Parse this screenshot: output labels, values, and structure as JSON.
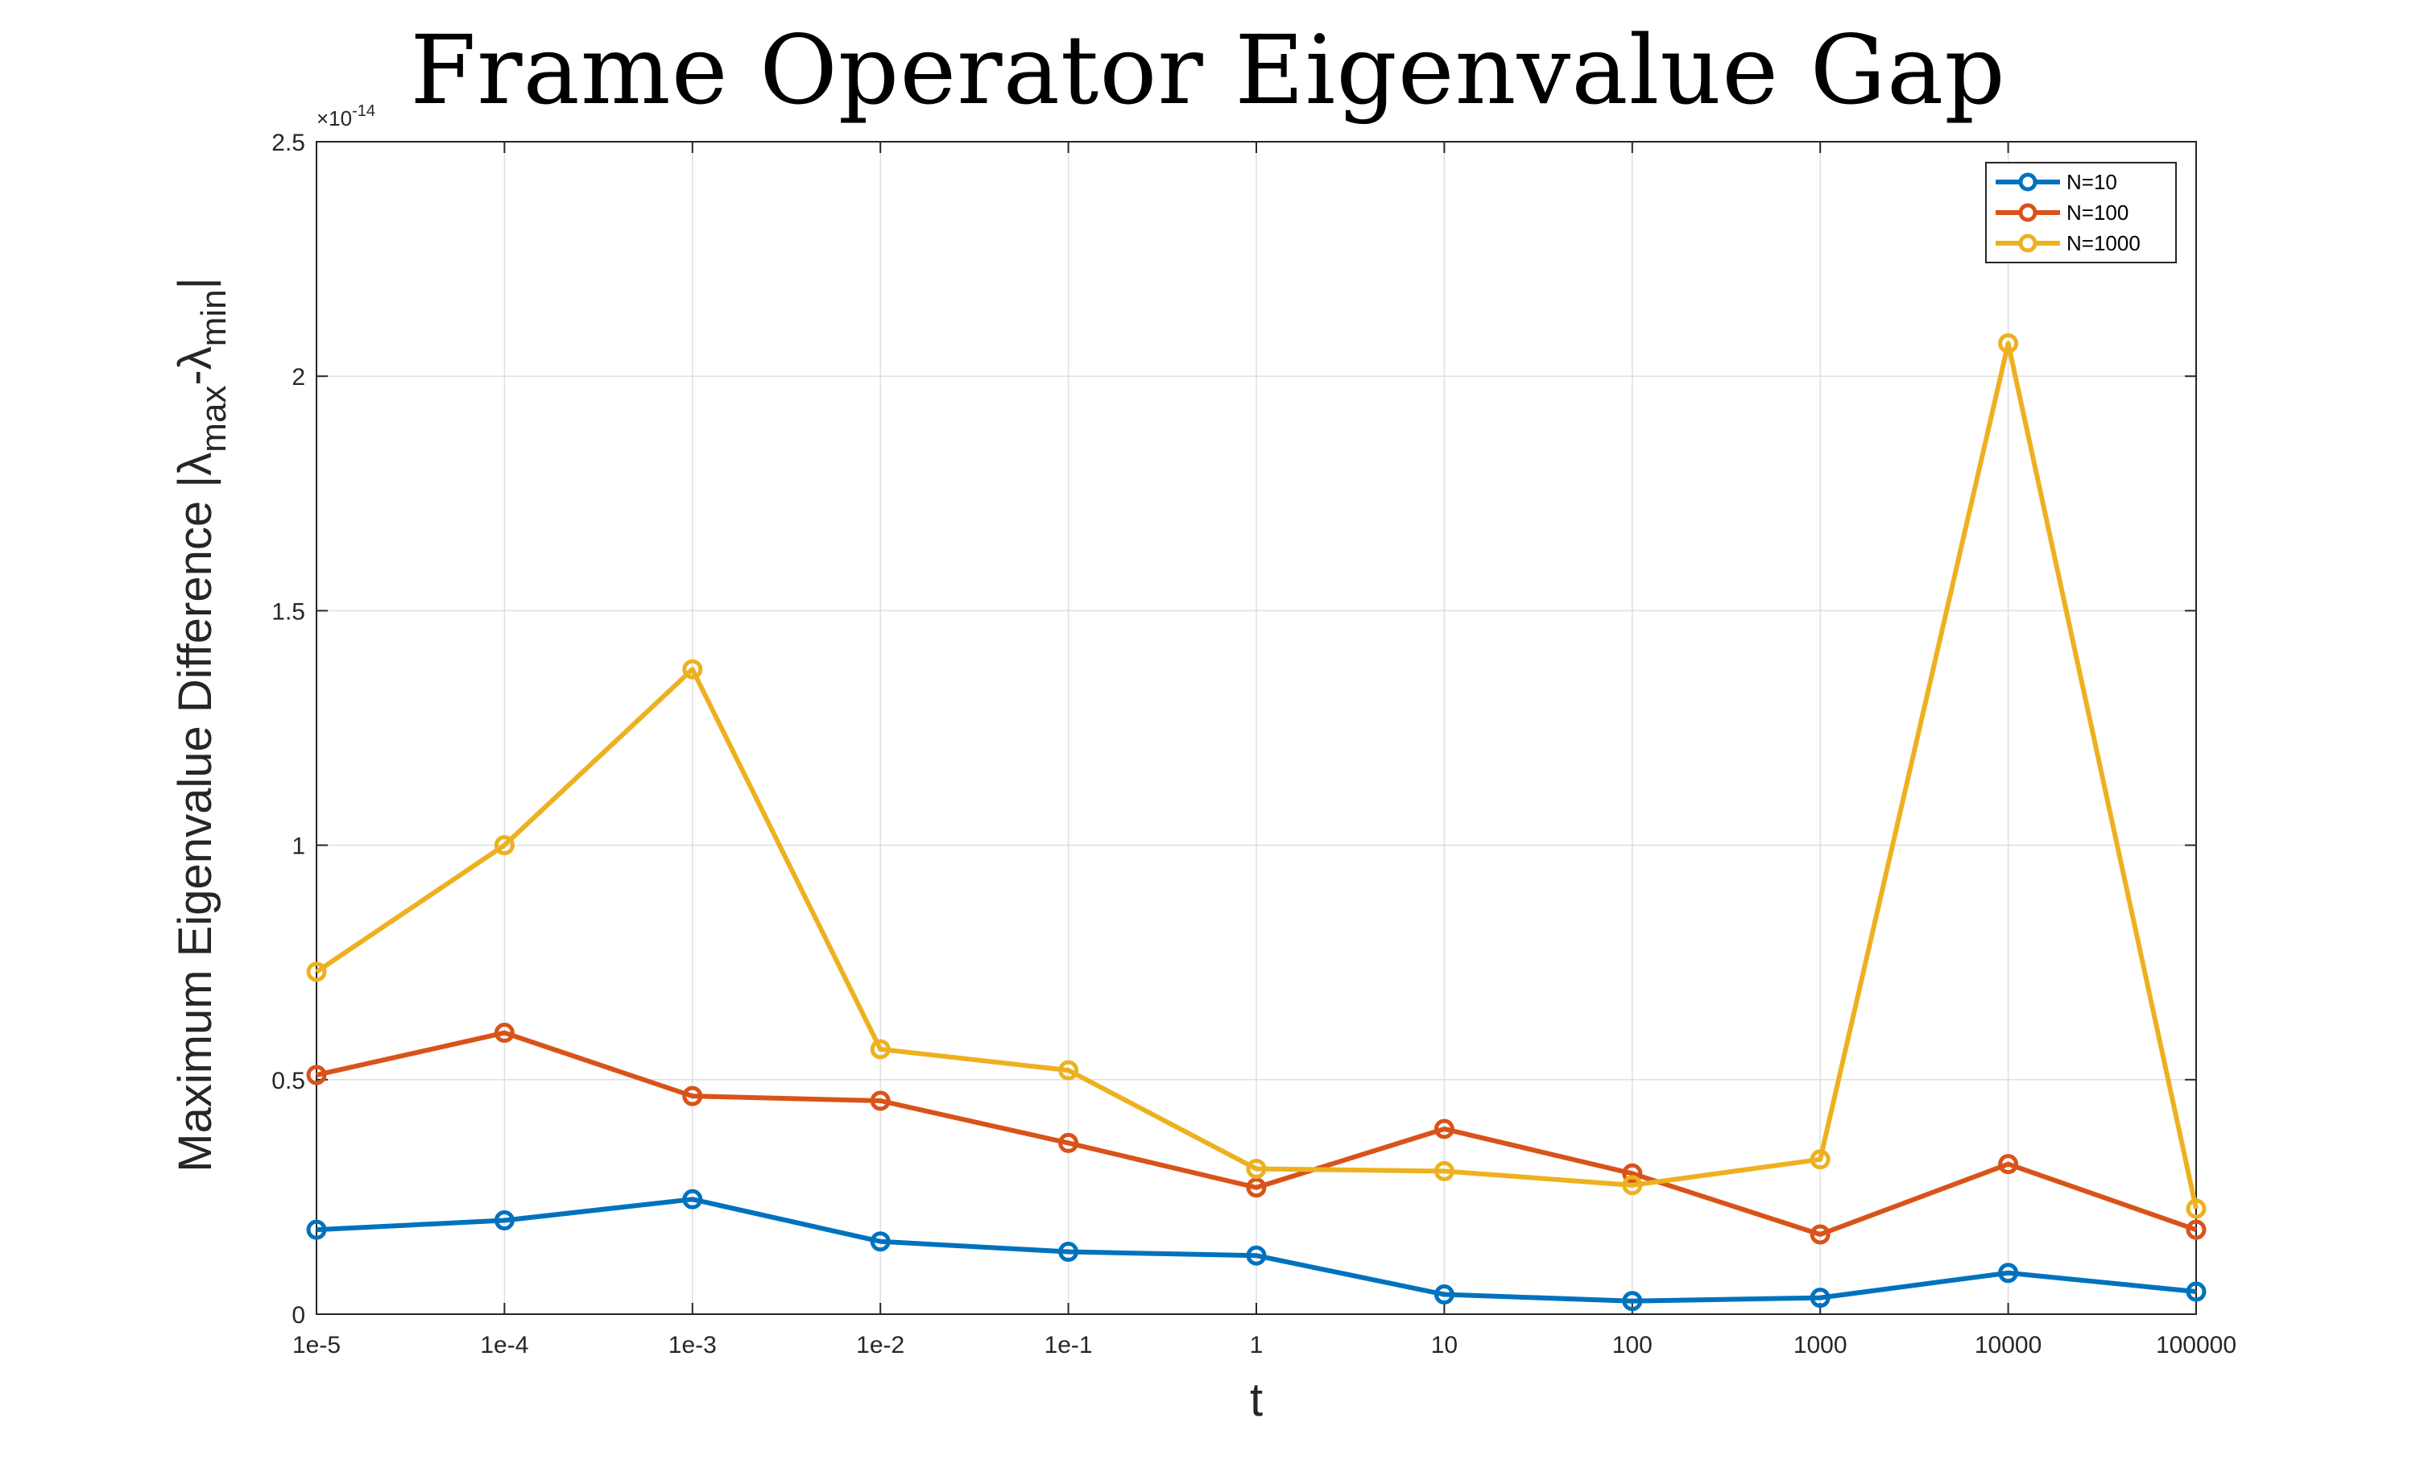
{
  "chart_data": {
    "type": "line",
    "title": "Frame Operator Eigenvalue Gap",
    "xlabel": "t",
    "ylabel": {
      "prefix": "Maximum Eigenvalue Difference |",
      "lambda": "λ",
      "sub_max": "max",
      "minus": "-",
      "sub_min": "min",
      "suffix": "|"
    },
    "categories": [
      "1e-5",
      "1e-4",
      "1e-3",
      "1e-2",
      "1e-1",
      "1",
      "10",
      "100",
      "1000",
      "10000",
      "100000"
    ],
    "y_exponent_label": {
      "base": "×10",
      "power": "-14"
    },
    "ylim": [
      0,
      2.5
    ],
    "yticks": [
      0,
      0.5,
      1,
      1.5,
      2,
      2.5
    ],
    "ytick_labels": [
      "0",
      "0.5",
      "1",
      "1.5",
      "2",
      "2.5"
    ],
    "grid": true,
    "legend_position": "top-right",
    "series": [
      {
        "name": "N=10",
        "color": "#0072BD",
        "values": [
          0.18,
          0.2,
          0.245,
          0.155,
          0.133,
          0.125,
          0.042,
          0.028,
          0.035,
          0.088,
          0.048
        ]
      },
      {
        "name": "N=100",
        "color": "#D95319",
        "values": [
          0.51,
          0.6,
          0.465,
          0.455,
          0.365,
          0.27,
          0.395,
          0.3,
          0.17,
          0.32,
          0.18
        ]
      },
      {
        "name": "N=1000",
        "color": "#EDB120",
        "values": [
          0.73,
          1.0,
          1.375,
          0.565,
          0.52,
          0.31,
          0.305,
          0.275,
          0.33,
          2.07,
          0.225
        ]
      }
    ]
  }
}
